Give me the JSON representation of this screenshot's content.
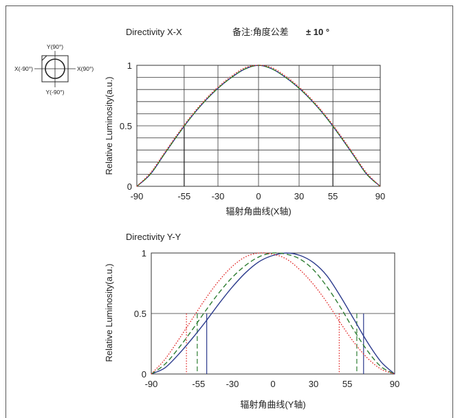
{
  "note": {
    "prefix": "备注:角度公差",
    "value": "± 10 °"
  },
  "package_icon": {
    "top": "Y(90°)",
    "bottom": "Y(-90°)",
    "left": "X(-90°)",
    "right": "X(90°)"
  },
  "colors": {
    "series_blue": "#2b3a8c",
    "series_green": "#2e7d32",
    "series_red": "#e0201f",
    "grid": "#333333"
  },
  "chart_data": [
    {
      "type": "line",
      "title": "Directivity X-X",
      "xlabel": "辐射角曲线(X轴)",
      "ylabel": "Relative Luminosity(a.u.)",
      "xlim": [
        -90,
        90
      ],
      "ylim": [
        0,
        1
      ],
      "x_ticks": [
        "-90",
        "-55",
        "-30",
        "0",
        "30",
        "55",
        "90"
      ],
      "y_ticks": [
        "0",
        "0.5",
        "1"
      ],
      "grid": true,
      "x": [
        -90,
        -80,
        -70,
        -60,
        -50,
        -40,
        -30,
        -20,
        -10,
        0,
        10,
        20,
        30,
        40,
        50,
        60,
        70,
        80,
        90
      ],
      "series": [
        {
          "values": [
            0,
            0.1,
            0.26,
            0.42,
            0.57,
            0.7,
            0.81,
            0.9,
            0.97,
            1.0,
            0.97,
            0.9,
            0.81,
            0.7,
            0.57,
            0.42,
            0.26,
            0.1,
            0
          ],
          "color": "#2b3a8c",
          "style": "solid"
        },
        {
          "values": [
            0,
            0.1,
            0.26,
            0.42,
            0.57,
            0.7,
            0.81,
            0.9,
            0.97,
            1.0,
            0.97,
            0.9,
            0.81,
            0.7,
            0.57,
            0.42,
            0.26,
            0.1,
            0
          ],
          "color": "#2e7d32",
          "style": "dashed"
        },
        {
          "values": [
            0,
            0.11,
            0.27,
            0.43,
            0.58,
            0.71,
            0.82,
            0.91,
            0.98,
            1.0,
            0.98,
            0.91,
            0.82,
            0.71,
            0.58,
            0.43,
            0.27,
            0.11,
            0
          ],
          "color": "#e0201f",
          "style": "dotted"
        }
      ],
      "half_width_lines": [
        -55,
        55
      ]
    },
    {
      "type": "line",
      "title": "Directivity Y-Y",
      "xlabel": "辐射角曲线(Y轴)",
      "ylabel": "Relative Luminosity(a.u.)",
      "xlim": [
        -90,
        90
      ],
      "ylim": [
        0,
        1
      ],
      "x_ticks": [
        "-90",
        "-55",
        "-30",
        "0",
        "30",
        "55",
        "90"
      ],
      "y_ticks": [
        "0",
        "0.5",
        "1"
      ],
      "grid": false,
      "x": [
        -90,
        -80,
        -70,
        -60,
        -50,
        -40,
        -30,
        -20,
        -10,
        0,
        10,
        20,
        30,
        40,
        50,
        60,
        70,
        80,
        90
      ],
      "series": [
        {
          "values": [
            0,
            0.05,
            0.16,
            0.29,
            0.43,
            0.58,
            0.72,
            0.84,
            0.93,
            0.98,
            1.0,
            0.98,
            0.92,
            0.81,
            0.64,
            0.45,
            0.26,
            0.1,
            0
          ],
          "color": "#2b3a8c",
          "style": "solid"
        },
        {
          "values": [
            0,
            0.08,
            0.21,
            0.36,
            0.52,
            0.67,
            0.8,
            0.9,
            0.97,
            1.0,
            0.99,
            0.95,
            0.86,
            0.72,
            0.55,
            0.36,
            0.19,
            0.06,
            0
          ],
          "color": "#2e7d32",
          "style": "dashed"
        },
        {
          "values": [
            0,
            0.12,
            0.28,
            0.45,
            0.62,
            0.77,
            0.89,
            0.97,
            1.0,
            0.99,
            0.95,
            0.86,
            0.74,
            0.59,
            0.42,
            0.26,
            0.13,
            0.04,
            0
          ],
          "color": "#e0201f",
          "style": "dotted"
        }
      ],
      "half_width_lines": {
        "red": [
          -64,
          49
        ],
        "green": [
          -56,
          62
        ],
        "blue": [
          -49,
          67
        ]
      }
    }
  ]
}
